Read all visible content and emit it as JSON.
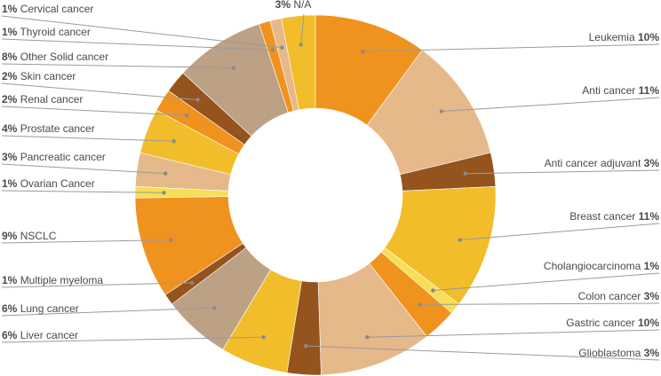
{
  "chart_data": {
    "type": "pie",
    "donut": true,
    "title": "",
    "slices": [
      {
        "label": "Leukemia",
        "value": 10,
        "pct_text": "10%",
        "color": "#F0921E"
      },
      {
        "label": "Anti cancer",
        "value": 11,
        "pct_text": "11%",
        "color": "#E6B98A"
      },
      {
        "label": "Anti cancer adjuvant",
        "value": 3,
        "pct_text": "3%",
        "color": "#95531E"
      },
      {
        "label": "Breast cancer",
        "value": 11,
        "pct_text": "11%",
        "color": "#F1BD2A"
      },
      {
        "label": "Cholangiocarcinoma",
        "value": 1,
        "pct_text": "1%",
        "color": "#F7DE55"
      },
      {
        "label": "Colon cancer",
        "value": 3,
        "pct_text": "3%",
        "color": "#F0921E"
      },
      {
        "label": "Gastric cancer",
        "value": 10,
        "pct_text": "10%",
        "color": "#E6B98A"
      },
      {
        "label": "Glioblastoma",
        "value": 3,
        "pct_text": "3%",
        "color": "#95531E"
      },
      {
        "label": "Liver cancer",
        "value": 6,
        "pct_text": "6%",
        "color": "#F1BD2A"
      },
      {
        "label": "Lung cancer",
        "value": 6,
        "pct_text": "6%",
        "color": "#BCA185"
      },
      {
        "label": "Multiple myeloma",
        "value": 1,
        "pct_text": "1%",
        "color": "#95531E"
      },
      {
        "label": "NSCLC",
        "value": 9,
        "pct_text": "9%",
        "color": "#F0921E"
      },
      {
        "label": "Ovarian Cancer",
        "value": 1,
        "pct_text": "1%",
        "color": "#F7DE55"
      },
      {
        "label": "Pancreatic cancer",
        "value": 3,
        "pct_text": "3%",
        "color": "#E6B98A"
      },
      {
        "label": "Prostate cancer",
        "value": 4,
        "pct_text": "4%",
        "color": "#F1BD2A"
      },
      {
        "label": "Renal cancer",
        "value": 2,
        "pct_text": "2%",
        "color": "#F0921E"
      },
      {
        "label": "Skin cancer",
        "value": 2,
        "pct_text": "2%",
        "color": "#95531E"
      },
      {
        "label": "Other Solid cancer",
        "value": 8,
        "pct_text": "8%",
        "color": "#BCA185"
      },
      {
        "label": "Thyroid cancer",
        "value": 1,
        "pct_text": "1%",
        "color": "#F0921E"
      },
      {
        "label": "Cervical cancer",
        "value": 1,
        "pct_text": "1%",
        "color": "#E6B98A"
      },
      {
        "label": "N/A",
        "value": 3,
        "pct_text": "3%",
        "color": "#F1BD2A"
      }
    ],
    "legend": "none"
  }
}
